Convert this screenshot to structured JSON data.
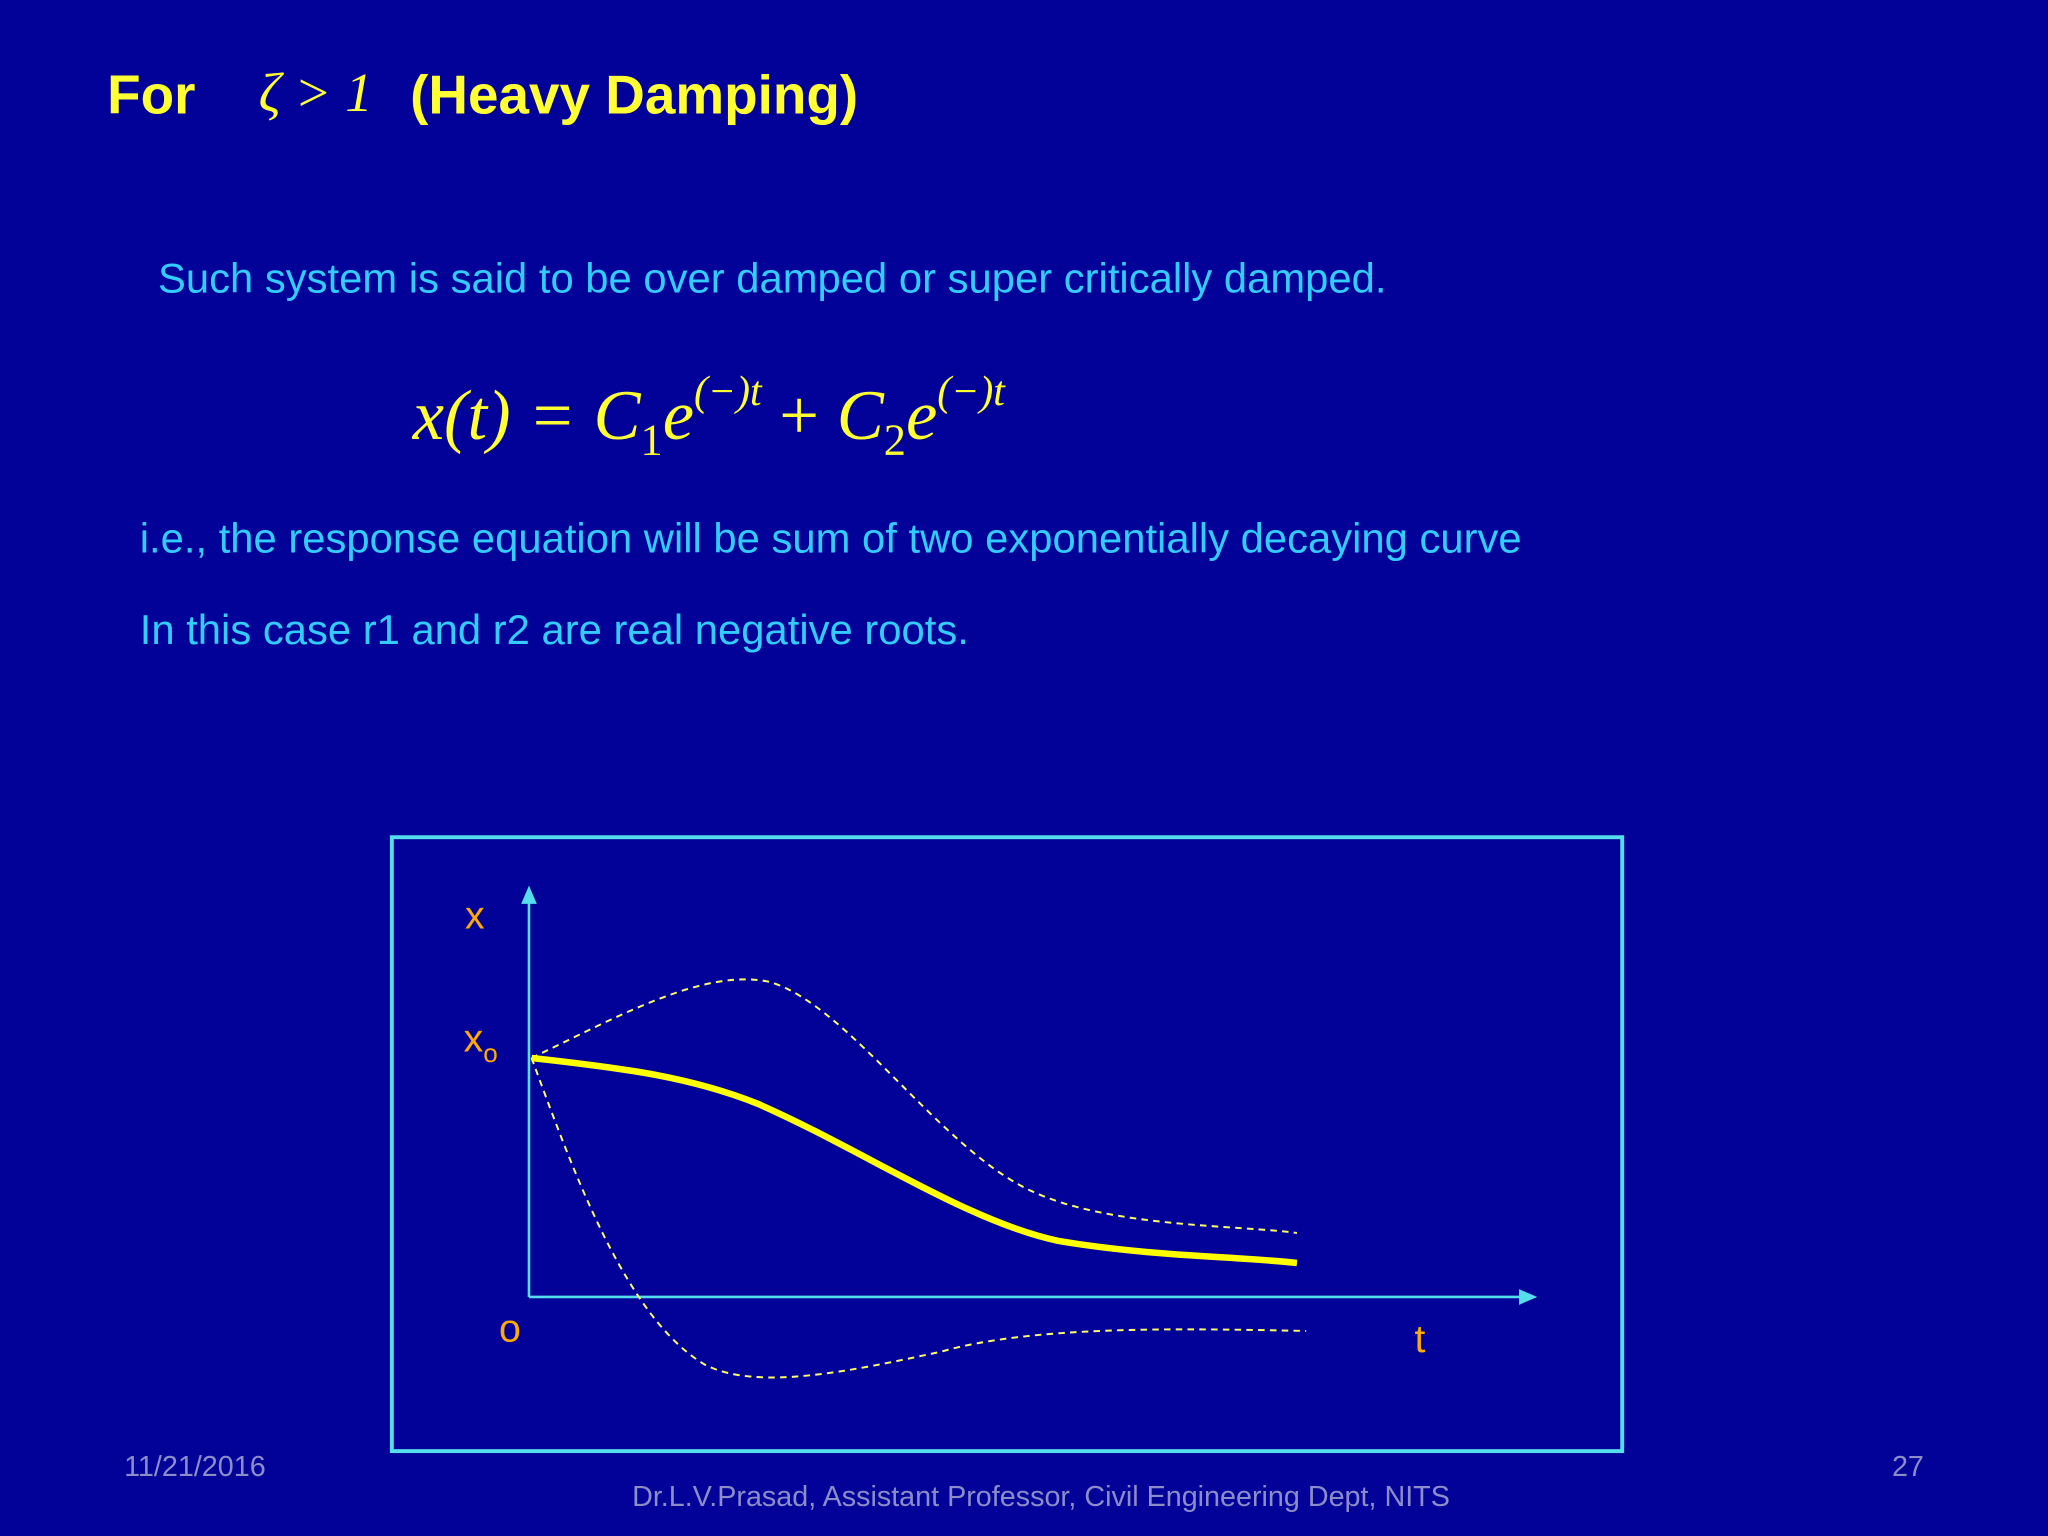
{
  "header": {
    "prefix": "For",
    "condition": "ζ > 1",
    "title": "(Heavy Damping)"
  },
  "body": {
    "line1": "Such system is said to be over damped or super critically damped.",
    "equation": {
      "lhs": "x(t) =",
      "coef1": "C",
      "sub1": "1",
      "base1": "e",
      "exp1": "(−)t",
      "plus": "+",
      "coef2": "C",
      "sub2": "2",
      "base2": "e",
      "exp2": "(−)t"
    },
    "line2": "i.e., the response equation will be sum of two exponentially decaying curve",
    "line3": "In this case r1 and r2 are real negative roots."
  },
  "diagram": {
    "y_label": "x",
    "initial_label": "x",
    "initial_subscript": "o",
    "origin_label": "o",
    "x_label": "t"
  },
  "footer": {
    "date": "11/21/2016",
    "page": "27",
    "author": "Dr.L.V.Prasad, Assistant Professor, Civil Engineering Dept, NITS"
  }
}
